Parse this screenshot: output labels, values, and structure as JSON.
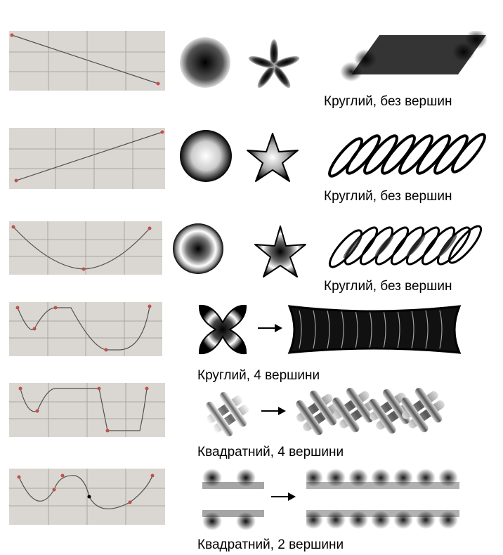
{
  "rows": [
    {
      "caption": "Круглий, без вершин"
    },
    {
      "caption": "Круглий, без вершин"
    },
    {
      "caption": "Круглий, без вершин"
    },
    {
      "caption": "Круглий, 4 вершини"
    },
    {
      "caption": "Квадратний, 4 вершини"
    },
    {
      "caption": "Квадратний, 2 вершини"
    }
  ],
  "colors": {
    "panel": "#dad7d3",
    "grid": "#a9a6a2",
    "curve": "#55504d",
    "point": "#c0504d"
  }
}
